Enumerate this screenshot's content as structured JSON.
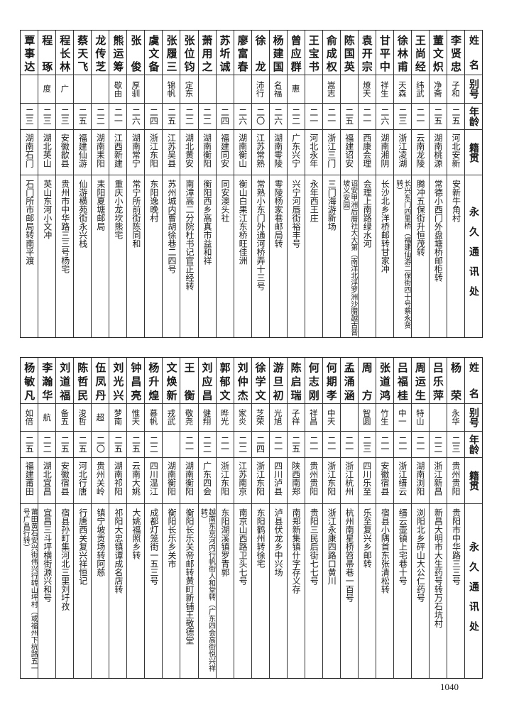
{
  "headers": {
    "name": "姓名",
    "alias": "别号",
    "age": "年龄",
    "native": "籍贯",
    "address": "永久通讯处"
  },
  "top_table": [
    [
      "李贤忠",
      "子和",
      "二五",
      "河北安新",
      "安新牛角村"
    ],
    [
      "董文炽",
      "净斋",
      "二五",
      "湖南桃源",
      "常德小西门外盘塘桥邮柜转"
    ],
    [
      "王尚经",
      "纬武",
      "二一",
      "云南龙陵",
      "腾冲五保街升恒茂转"
    ],
    [
      "徐林甫",
      "天森",
      "二三",
      "浙江凌湖",
      "长兴东门四里桥（福建仙游二保街四十号蔡永贤转）"
    ],
    [
      "甘平中",
      "祥生",
      "二六",
      "湖南湘阴",
      "长沙北乡洋桥邮转甘家冲"
    ],
    [
      "袁开宗",
      "燎天",
      "二一",
      "西康会理",
      "会理上南路绿水河"
    ],
    [
      "陈国英",
      "",
      "二五",
      "福建诏安",
      "诏安甲洲后厝社大大第（南洋北浮罗洲沙腊越古晋坡义安园）"
    ],
    [
      "俞成权",
      "嵩志",
      "二一",
      "浙江三门",
      "三门海游新场"
    ],
    [
      "王宝书",
      "",
      "二一",
      "河北永年",
      "永年西王庄"
    ],
    [
      "曾应群",
      "惠",
      "二二",
      "广东兴宁",
      "兴宁河唇街裕丰号"
    ],
    [
      "杨建国",
      "名福",
      "二六",
      "湖南零陵",
      "零陵杨家巷邮局转"
    ],
    [
      "徐龙",
      "沛行",
      "二〇",
      "江苏常熟",
      "常熟小东门外通河桥弄十三号"
    ],
    [
      "廖富春",
      "",
      "二六",
      "湖南衡山",
      "衡山白果江东桥旺佳洲"
    ],
    [
      "苏圻诚",
      "",
      "二四",
      "福建同安",
      "同安澳头社"
    ],
    [
      "萧用之",
      "",
      "二二",
      "湖南衡阳",
      "衡阳西乡高真市益和祥"
    ],
    [
      "张位钧",
      "定东",
      "二二",
      "湖北黄安",
      "南漳高二分院杜书记官正经转"
    ],
    [
      "张履三",
      "锦帆",
      "二五",
      "江苏吴县",
      "苏州城内曹胡徐巷二四号"
    ],
    [
      "虞文备",
      "",
      "二四",
      "浙江东阳",
      "东阳逸晚村"
    ],
    [
      "张俊",
      "厚驯",
      "二六",
      "湖南常宁",
      "常宁所前街陈同和"
    ],
    [
      "熊运筹",
      "歇由",
      "二一",
      "江西新建",
      "重庆小龙坎熊宅"
    ],
    [
      "龙传芝",
      "",
      "二二",
      "湖南耒阳",
      "耒阳夏塘邮局"
    ],
    [
      "蔡天飞",
      "",
      "二五",
      "福建仙游",
      "仙游横苑街永兴栈"
    ],
    [
      "程长林",
      "广",
      "二三",
      "安徽歙县",
      "贵州市中华路三三号杨宅"
    ],
    [
      "程琢",
      "度",
      "二三",
      "湖北英山",
      "英山东河小文冲"
    ],
    [
      "覃事达",
      "",
      "二三",
      "湖南石门",
      "石门所市邮局转南平渡"
    ]
  ],
  "bottom_table": [
    [
      "杨荣",
      "永华",
      "二三",
      "贵州贵阳",
      "贵阳市中华路三三号"
    ],
    [
      "吕乐萍",
      "",
      "二二",
      "浙江新昌",
      "新昌大明市大生药号转万石坑村"
    ],
    [
      "周运生",
      "特山",
      "二一",
      "湖南浏阳",
      "浏阳北乡砰山大公仁药号"
    ],
    [
      "吕福桂",
      "中一",
      "二一",
      "浙江缙云",
      "缙云壶镇上宅巷十号"
    ],
    [
      "张道鸿",
      "竹生",
      "二一",
      "安徽宿县",
      "宿县小隅首东张清松转"
    ],
    [
      "周方",
      "智圆",
      "二三",
      "四川乐至",
      "乐至复兴乡邮转"
    ],
    [
      "孟涌涵",
      "",
      "二一",
      "浙江杭州",
      "杭州南星桥笤帚巷一百号"
    ],
    [
      "何期孝",
      "中天",
      "二一",
      "浙江东阳",
      "浙江永康四路口黄川"
    ],
    [
      "何志刚",
      "祥昌",
      "二一",
      "贵州贵阳",
      "贵阳三民后街七七号"
    ],
    [
      "陈启瑞",
      "子祥",
      "二五",
      "陕西南郑",
      "南郑新集镇什字存义存"
    ],
    [
      "游旦初",
      "光旭",
      "二一",
      "四川泸县",
      "泸县伏龙乡中兴场"
    ],
    [
      "徐学文",
      "芝荣",
      "二四",
      "浙江东阳",
      "东阳鹤州转徐宅"
    ],
    [
      "刘仲杰",
      "家炎",
      "二二",
      "江苏南京",
      "南京山西路卫头七号"
    ],
    [
      "郭郁文",
      "晔光",
      "二一",
      "浙江东阳",
      "东阳湖溪镇罗青郭"
    ],
    [
      "刘应昌",
      "健翔",
      "二二",
      "广东四会",
      "越南东京河内行帆街人和堂转（广东四会高街悦兴祥转）"
    ],
    [
      "王衡",
      "敬尧",
      "二一",
      "湖南衡阳",
      "衡阳长乐关帝邮转黄町新铺王敬德堂"
    ],
    [
      "文焕新",
      "戎武",
      "",
      "湖南衡阳",
      "衡阳长乐乡关市"
    ],
    [
      "杨升煌",
      "慕帆",
      "二二",
      "四川温江",
      "成都灯笼街一五三号"
    ],
    [
      "钟昌亮",
      "惟天",
      "二五",
      "云南大姚",
      "大姚福照乡转"
    ],
    [
      "刘光兴",
      "梦南",
      "二五",
      "湖南祁阳",
      "祁阳大忠镇谭成名店转"
    ],
    [
      "伍凤丹",
      "超",
      "二〇",
      "贵州关岭",
      "镇宁坡贡场转阿慈"
    ],
    [
      "陈哲民",
      "浚哲",
      "二五",
      "河北行唐",
      "行唐西关复兴祥恒记"
    ],
    [
      "刘道福",
      "备五",
      "二五",
      "安徽宿县",
      "宿县孙町集河北三里刘圩孜"
    ],
    [
      "李瀚华",
      "航",
      "二二",
      "湖北宜昌",
      "宜昌三斗坪横街源兴和号"
    ],
    [
      "杨敏凡",
      "如倍",
      "二五",
      "福建莆田",
      "莆田黄石安兴街伟兴行转山坪村（或福州下杭路五一号广昌行转）"
    ]
  ],
  "page_number": "1040"
}
